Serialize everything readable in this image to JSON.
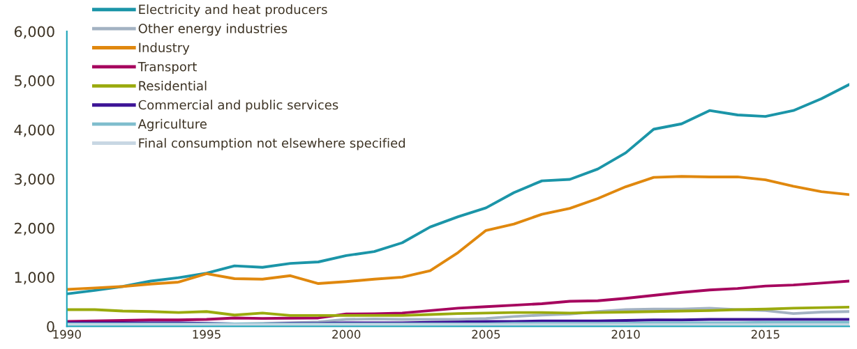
{
  "chart_data": {
    "type": "line",
    "x": [
      1990,
      1991,
      1992,
      1993,
      1994,
      1995,
      1996,
      1997,
      1998,
      1999,
      2000,
      2001,
      2002,
      2003,
      2004,
      2005,
      2006,
      2007,
      2008,
      2009,
      2010,
      2011,
      2012,
      2013,
      2014,
      2015,
      2016,
      2017,
      2018
    ],
    "xlim": [
      1990,
      2018
    ],
    "xticks": [
      1990,
      1995,
      2000,
      2005,
      2010,
      2015
    ],
    "ylim": [
      0,
      6000
    ],
    "yticks": [
      {
        "value": 0,
        "label": "0"
      },
      {
        "value": 1000,
        "label": "1,000"
      },
      {
        "value": 2000,
        "label": "2,000"
      },
      {
        "value": 3000,
        "label": "3,000"
      },
      {
        "value": 4000,
        "label": "4,000"
      },
      {
        "value": 5000,
        "label": "5,000"
      },
      {
        "value": 6000,
        "label": "6,000"
      }
    ],
    "grid": false,
    "legend": "top left",
    "marker": "none",
    "line_style": "solid",
    "series": [
      {
        "name": "Electricity and heat producers",
        "color": "#1b95a8",
        "values": [
          660,
          730,
          810,
          920,
          990,
          1080,
          1230,
          1200,
          1280,
          1310,
          1440,
          1520,
          1700,
          2020,
          2230,
          2410,
          2720,
          2960,
          2990,
          3200,
          3530,
          4010,
          4120,
          4390,
          4300,
          4270,
          4390,
          4630,
          4920
        ]
      },
      {
        "name": "Other energy industries",
        "color": "#a3b2c2",
        "values": [
          50,
          50,
          50,
          50,
          60,
          60,
          50,
          60,
          70,
          90,
          140,
          150,
          140,
          140,
          140,
          160,
          200,
          230,
          250,
          300,
          340,
          350,
          350,
          370,
          340,
          320,
          260,
          290,
          300
        ]
      },
      {
        "name": "Industry",
        "color": "#e0880e",
        "values": [
          750,
          780,
          810,
          860,
          900,
          1070,
          970,
          960,
          1030,
          870,
          910,
          960,
          1000,
          1130,
          1500,
          1950,
          2080,
          2280,
          2400,
          2600,
          2840,
          3030,
          3050,
          3040,
          3040,
          2980,
          2850,
          2740,
          2680
        ]
      },
      {
        "name": "Transport",
        "color": "#a6055e",
        "values": [
          100,
          110,
          120,
          130,
          130,
          140,
          170,
          160,
          165,
          170,
          250,
          255,
          270,
          320,
          370,
          400,
          430,
          460,
          510,
          520,
          570,
          630,
          690,
          740,
          770,
          820,
          840,
          880,
          920
        ]
      },
      {
        "name": "Residential",
        "color": "#9aaa0e",
        "values": [
          340,
          340,
          310,
          300,
          280,
          300,
          230,
          270,
          220,
          220,
          220,
          220,
          220,
          240,
          260,
          270,
          280,
          280,
          270,
          280,
          290,
          300,
          310,
          320,
          340,
          350,
          370,
          380,
          390
        ]
      },
      {
        "name": "Commercial and public services",
        "color": "#3d1496",
        "values": [
          70,
          70,
          70,
          70,
          70,
          60,
          50,
          50,
          60,
          60,
          70,
          70,
          70,
          80,
          90,
          100,
          100,
          110,
          110,
          110,
          120,
          130,
          130,
          140,
          140,
          140,
          140,
          140,
          140
        ]
      },
      {
        "name": "Agriculture",
        "color": "#7fbdcd",
        "values": [
          50,
          50,
          50,
          50,
          50,
          50,
          50,
          50,
          50,
          50,
          50,
          50,
          50,
          50,
          50,
          50,
          60,
          60,
          60,
          60,
          60,
          70,
          70,
          70,
          70,
          80,
          80,
          80,
          80
        ]
      },
      {
        "name": "Final consumption not elsewhere specified",
        "color": "#c8d7e3",
        "values": [
          30,
          30,
          30,
          30,
          30,
          30,
          30,
          30,
          30,
          30,
          30,
          30,
          30,
          30,
          30,
          30,
          30,
          30,
          30,
          30,
          30,
          30,
          30,
          30,
          30,
          30,
          30,
          30,
          30
        ]
      }
    ]
  }
}
